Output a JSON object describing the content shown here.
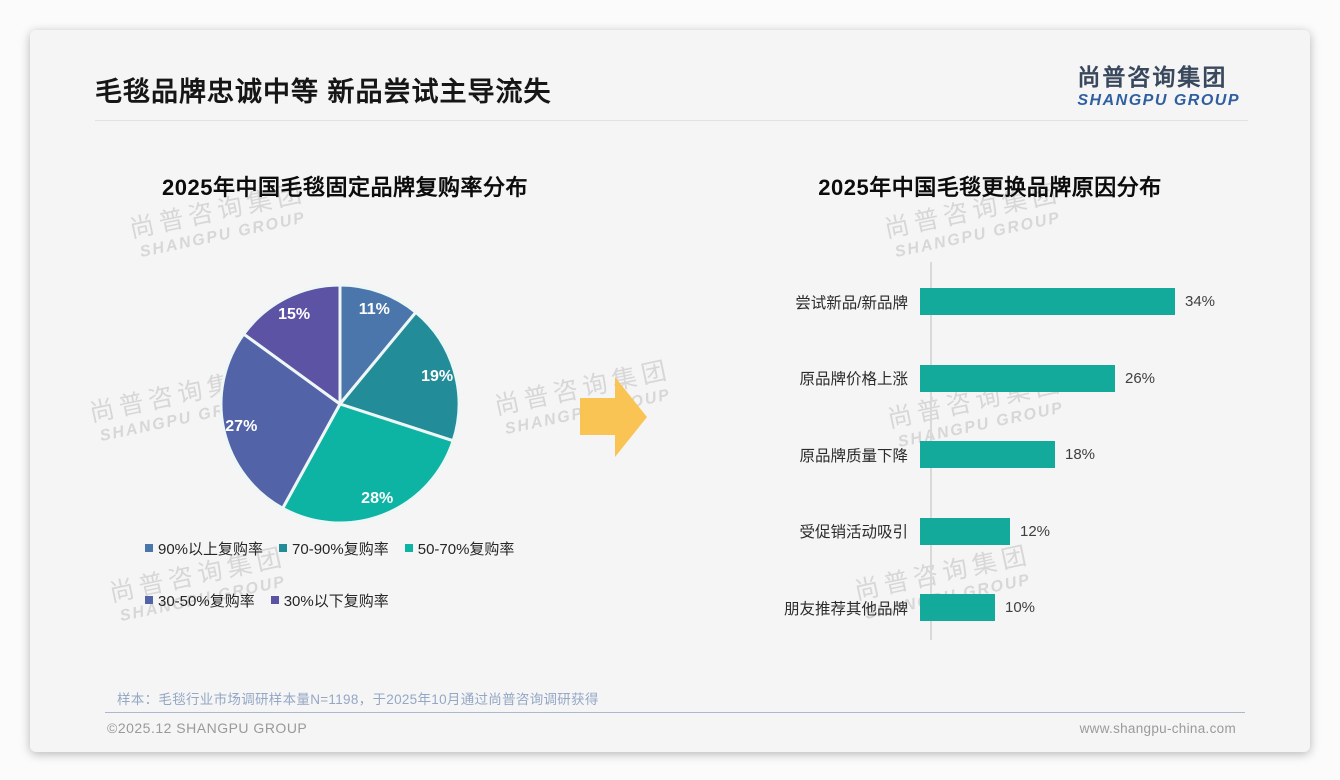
{
  "slide": {
    "title": "毛毯品牌忠诚中等 新品尝试主导流失",
    "logo": {
      "name_cn": "尚普咨询集团",
      "name_en": "SHANGPU GROUP"
    },
    "watermark": {
      "line1": "尚普咨询集团",
      "line2": "SHANGPU GROUP"
    },
    "arrow_color": "#F9C454",
    "footer": {
      "sample_note": "样本：毛毯行业市场调研样本量N=1198，于2025年10月通过尚普咨询调研获得",
      "copyright": "©2025.12 SHANGPU GROUP",
      "website": "www.shangpu-china.com"
    }
  },
  "chart_data": [
    {
      "type": "pie",
      "title": "2025年中国毛毯固定品牌复购率分布",
      "labels": [
        "90%以上复购率",
        "70-90%复购率",
        "50-70%复购率",
        "30-50%复购率",
        "30%以下复购率"
      ],
      "values": [
        11,
        19,
        28,
        27,
        15
      ],
      "value_labels": [
        "11%",
        "19%",
        "28%",
        "27%",
        "15%"
      ],
      "colors": [
        "#4B76AB",
        "#238C99",
        "#0DB4A4",
        "#5263A8",
        "#5C53A5"
      ],
      "start_angle_deg": 0,
      "direction": "clockwise",
      "legend_position": "bottom"
    },
    {
      "type": "bar",
      "orientation": "horizontal",
      "title": "2025年中国毛毯更换品牌原因分布",
      "categories": [
        "尝试新品/新品牌",
        "原品牌价格上涨",
        "原品牌质量下降",
        "受促销活动吸引",
        "朋友推荐其他品牌"
      ],
      "values": [
        34,
        26,
        18,
        12,
        10
      ],
      "value_labels": [
        "34%",
        "26%",
        "18%",
        "12%",
        "10%"
      ],
      "bar_color": "#13A99B",
      "xlim": [
        0,
        36
      ],
      "grid": false,
      "axis_line": true
    }
  ]
}
